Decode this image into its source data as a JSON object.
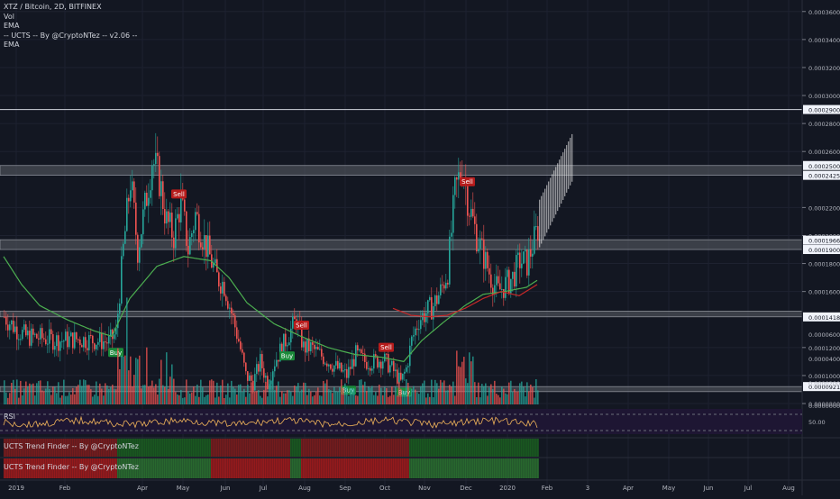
{
  "chart_data": {
    "type": "candlestick",
    "title": "XTZ / Bitcoin, 2D, BITFINEX",
    "legend": [
      "Vol",
      "EMA",
      "-- UCTS -- By @CryptoNTez -- v2.06 --",
      "EMA"
    ],
    "colors": {
      "up": "#26a69a",
      "down": "#ef5350",
      "ema": "#4caf50",
      "ema2": "#c62828",
      "bg": "#131722",
      "band": "#5d6068",
      "projection": "#e6e6e6"
    },
    "y_ticks": [
      "0.00036000",
      "0.00034000",
      "0.00032000",
      "0.00030000",
      "0.00028000",
      "0.00026000",
      "0.00022000",
      "0.00020000",
      "0.00018000",
      "0.00016000",
      "0.00012000",
      "0.00010000",
      "0.00008000"
    ],
    "y_range": [
      8e-05,
      0.000365
    ],
    "level_labels": [
      {
        "label": "0.00029000",
        "value": 0.00029
      },
      {
        "label": "0.00025000",
        "value": 0.00025
      },
      {
        "label": "0.00024254",
        "value": 0.000243
      },
      {
        "label": "0.00019668",
        "value": 0.00019668
      },
      {
        "label": "0.00019000",
        "value": 0.00019
      },
      {
        "label": "0.00014187",
        "value": 0.00014187
      },
      {
        "label": "0.00009211",
        "value": 9.211e-05
      }
    ],
    "bands": [
      {
        "low": 0.000243,
        "high": 0.00025
      },
      {
        "low": 0.00019,
        "high": 0.000197
      },
      {
        "low": 0.0001419,
        "high": 0.000146
      },
      {
        "low": 8.847e-05,
        "high": 9.211e-05
      }
    ],
    "hline": 0.00029,
    "x_labels": [
      "2019",
      "Feb",
      "Apr",
      "May",
      "Jun",
      "Jul",
      "Aug",
      "Sep",
      "Oct",
      "Nov",
      "Dec",
      "2020",
      "Feb",
      "3",
      "Apr",
      "May",
      "Jun",
      "Jul",
      "Aug"
    ],
    "signals": [
      {
        "label": "Buy",
        "bar": 62,
        "type": "buy"
      },
      {
        "label": "Sell",
        "bar": 97,
        "type": "sell"
      },
      {
        "label": "Buy",
        "bar": 157,
        "type": "buy"
      },
      {
        "label": "Sell",
        "bar": 165,
        "type": "sell"
      },
      {
        "label": "Buy",
        "bar": 191,
        "type": "buy"
      },
      {
        "label": "Sell",
        "bar": 212,
        "type": "sell"
      },
      {
        "label": "Buy",
        "bar": 222,
        "type": "buy"
      },
      {
        "label": "Sell",
        "bar": 257,
        "type": "sell"
      }
    ],
    "volume_ticks": [
      "0.00006000",
      "0.00004000",
      "0.00002000",
      "0.00000000"
    ],
    "rsi": {
      "label": "RSI",
      "value_label": "50.00"
    },
    "trend_finder_labels": [
      "UCTS Trend Finder -- By @CryptoNTez",
      "UCTS Trend Finder -- By @CryptoNTez"
    ],
    "close_anchors": [
      [
        0,
        0.000142
      ],
      [
        6,
        0.000134
      ],
      [
        12,
        0.000128
      ],
      [
        20,
        0.000127
      ],
      [
        30,
        0.000125
      ],
      [
        40,
        0.000126
      ],
      [
        50,
        0.000125
      ],
      [
        58,
        0.000124
      ],
      [
        62,
        0.00013
      ],
      [
        66,
        0.00019
      ],
      [
        70,
        0.00024
      ],
      [
        74,
        0.00019
      ],
      [
        78,
        0.00022
      ],
      [
        82,
        0.000255
      ],
      [
        86,
        0.00024
      ],
      [
        90,
        0.00021
      ],
      [
        94,
        0.0002
      ],
      [
        98,
        0.000225
      ],
      [
        102,
        0.00019
      ],
      [
        106,
        0.000215
      ],
      [
        110,
        0.0002
      ],
      [
        114,
        0.000185
      ],
      [
        118,
        0.00017
      ],
      [
        122,
        0.000165
      ],
      [
        126,
        0.000145
      ],
      [
        130,
        0.000125
      ],
      [
        134,
        0.0001
      ],
      [
        138,
        9.5e-05
      ],
      [
        142,
        0.00011
      ],
      [
        146,
        9.5e-05
      ],
      [
        150,
        0.00011
      ],
      [
        154,
        0.00012
      ],
      [
        158,
        0.00013
      ],
      [
        162,
        0.00014
      ],
      [
        166,
        0.00012
      ],
      [
        170,
        0.00012
      ],
      [
        175,
        0.000115
      ],
      [
        180,
        0.00011
      ],
      [
        185,
        0.000105
      ],
      [
        190,
        0.0001
      ],
      [
        195,
        0.000115
      ],
      [
        200,
        0.00011
      ],
      [
        205,
        0.00011
      ],
      [
        210,
        0.000112
      ],
      [
        215,
        0.000105
      ],
      [
        220,
        9.5e-05
      ],
      [
        223,
        0.000105
      ],
      [
        226,
        0.000125
      ],
      [
        230,
        0.00014
      ],
      [
        234,
        0.000145
      ],
      [
        238,
        0.00015
      ],
      [
        242,
        0.00016
      ],
      [
        246,
        0.000175
      ],
      [
        250,
        0.00023
      ],
      [
        254,
        0.00025
      ],
      [
        258,
        0.00022
      ],
      [
        262,
        0.0002
      ],
      [
        266,
        0.000185
      ],
      [
        270,
        0.00017
      ],
      [
        274,
        0.00016
      ],
      [
        278,
        0.000165
      ],
      [
        282,
        0.00017
      ],
      [
        286,
        0.000182
      ],
      [
        290,
        0.00018
      ],
      [
        296,
        0.000205
      ]
    ],
    "ema_anchors": [
      [
        0,
        0.000185
      ],
      [
        10,
        0.000165
      ],
      [
        20,
        0.00015
      ],
      [
        35,
        0.00014
      ],
      [
        50,
        0.000132
      ],
      [
        60,
        0.000128
      ],
      [
        70,
        0.000155
      ],
      [
        85,
        0.000178
      ],
      [
        100,
        0.000185
      ],
      [
        115,
        0.000182
      ],
      [
        125,
        0.00017
      ],
      [
        135,
        0.000152
      ],
      [
        150,
        0.000137
      ],
      [
        165,
        0.000128
      ],
      [
        180,
        0.00012
      ],
      [
        195,
        0.000115
      ],
      [
        210,
        0.000113
      ],
      [
        222,
        0.00011
      ],
      [
        232,
        0.000125
      ],
      [
        244,
        0.000138
      ],
      [
        256,
        0.00015
      ],
      [
        266,
        0.000158
      ],
      [
        278,
        0.00016
      ],
      [
        290,
        0.000163
      ],
      [
        296,
        0.000168
      ]
    ],
    "ema2_anchors": [
      [
        216,
        0.000148
      ],
      [
        226,
        0.000143
      ],
      [
        236,
        0.000142
      ],
      [
        246,
        0.000143
      ],
      [
        256,
        0.000148
      ],
      [
        266,
        0.000155
      ],
      [
        276,
        0.00016
      ],
      [
        286,
        0.000157
      ],
      [
        296,
        0.000165
      ]
    ]
  }
}
